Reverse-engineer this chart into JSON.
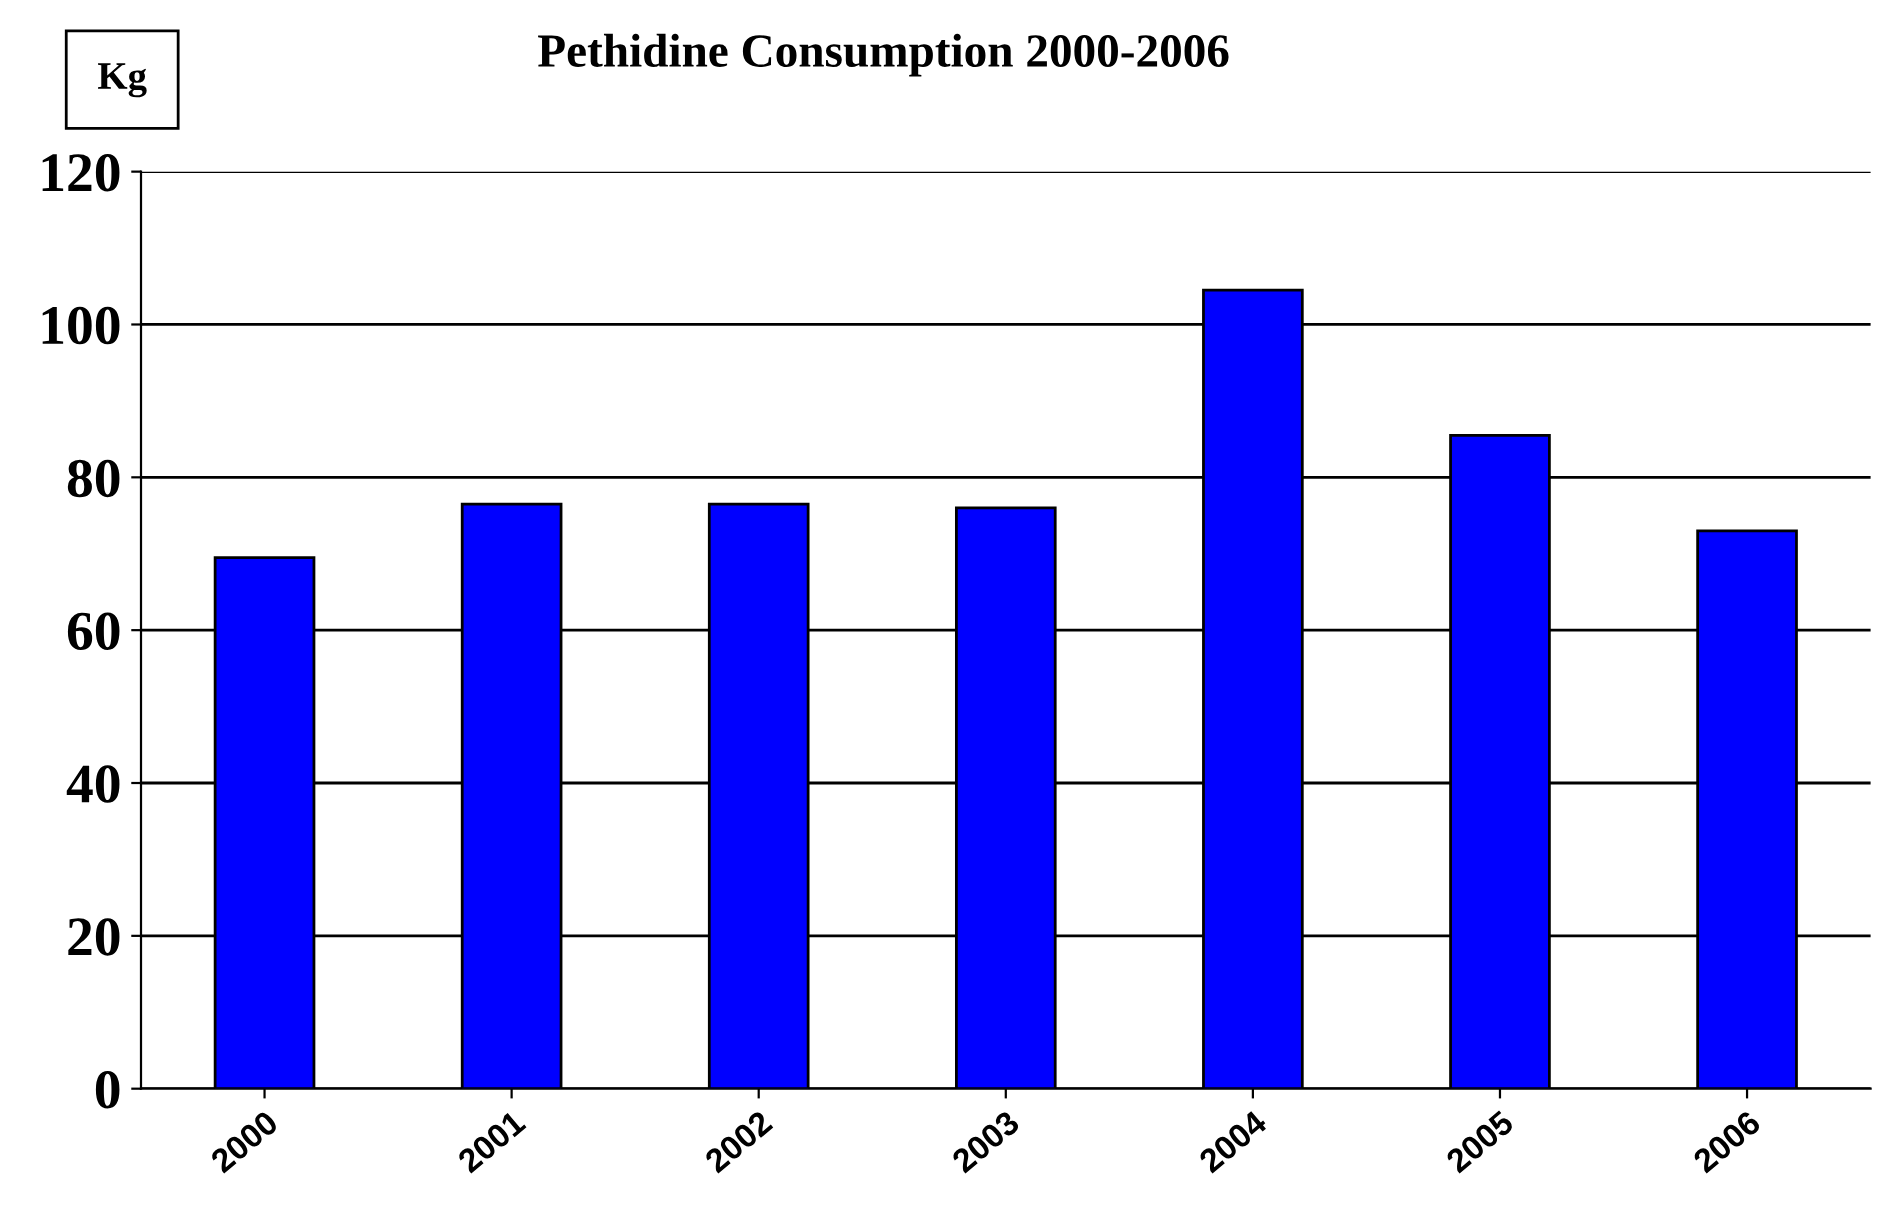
{
  "chart_data": {
    "type": "bar",
    "title": "Pethidine Consumption 2000-2006",
    "ylabel": "Kg",
    "categories": [
      "2000",
      "2001",
      "2002",
      "2003",
      "2004",
      "2005",
      "2006"
    ],
    "values": [
      69.5,
      76.5,
      76.5,
      76,
      104.5,
      85.5,
      73
    ],
    "color": "#0000ff",
    "ylim": [
      0,
      120
    ],
    "yticks": [
      0,
      20,
      40,
      60,
      80,
      100,
      120
    ],
    "grid": "y"
  }
}
